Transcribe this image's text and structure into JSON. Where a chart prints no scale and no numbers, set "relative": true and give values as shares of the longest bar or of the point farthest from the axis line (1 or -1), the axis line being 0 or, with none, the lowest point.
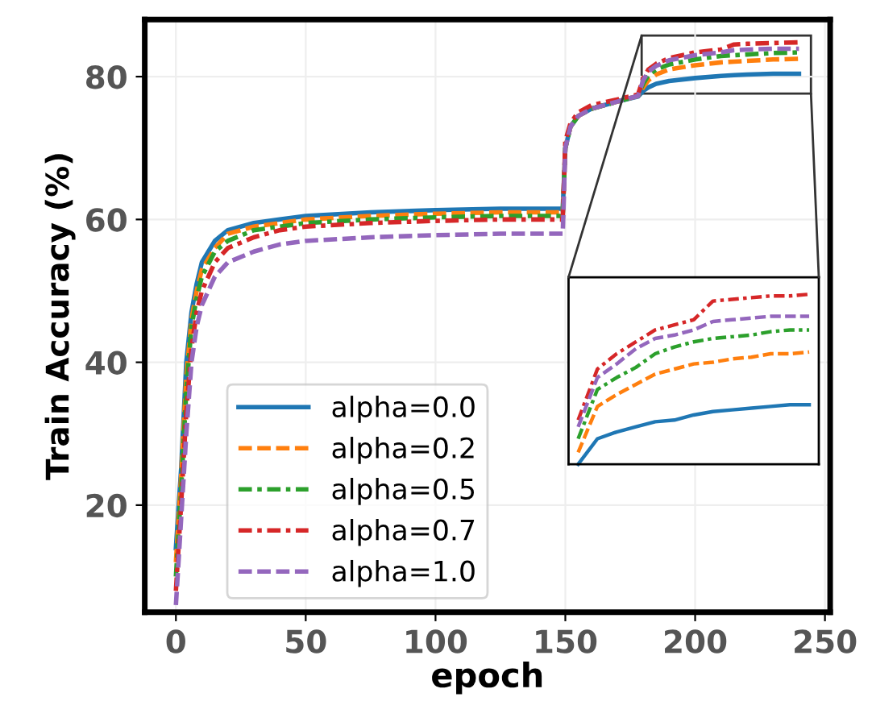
{
  "chart_data": [
    {
      "type": "line",
      "xlabel": "epoch",
      "ylabel": "Train Accuracy (%)",
      "xlim": [
        -12,
        252
      ],
      "ylim": [
        5,
        88
      ],
      "xticks": [
        0,
        50,
        100,
        150,
        200,
        250
      ],
      "yticks": [
        20,
        40,
        60,
        80
      ],
      "grid": true,
      "legend": "bottom left",
      "x": [
        0,
        2,
        4,
        6,
        8,
        10,
        15,
        20,
        30,
        40,
        50,
        75,
        100,
        125,
        149,
        150,
        152,
        155,
        160,
        170,
        178,
        180,
        182,
        185,
        190,
        200,
        210,
        215,
        220,
        230,
        240
      ],
      "series": [
        {
          "name": "alpha=0.0",
          "color": "#1f77b4",
          "line_style": "solid",
          "values": [
            14,
            25,
            40,
            47,
            51,
            54,
            57,
            58.5,
            59.5,
            60,
            60.5,
            61,
            61.3,
            61.5,
            61.5,
            70,
            73,
            74.5,
            75.5,
            76.5,
            77.2,
            78,
            78.5,
            79,
            79.4,
            79.8,
            80.1,
            80.2,
            80.3,
            80.4,
            80.4
          ]
        },
        {
          "name": "alpha=0.2",
          "color": "#ff7f0e",
          "line_style": "dashed",
          "values": [
            12,
            24,
            38,
            46,
            50,
            53,
            56,
            58,
            59,
            59.5,
            60,
            60.5,
            60.8,
            61,
            61,
            70,
            73,
            74.5,
            75.5,
            76.5,
            77.3,
            78.5,
            79.5,
            80.3,
            81,
            81.6,
            82,
            82.1,
            82.2,
            82.4,
            82.5
          ]
        },
        {
          "name": "alpha=0.5",
          "color": "#2ca02c",
          "line_style": "dashdot",
          "values": [
            10,
            22,
            36,
            45,
            49,
            52,
            55.5,
            57,
            58.5,
            59,
            59.5,
            60,
            60.3,
            60.5,
            60.5,
            70,
            73,
            74.5,
            75.5,
            76.5,
            77.3,
            79,
            80.2,
            81,
            81.7,
            82.4,
            82.9,
            83,
            83.1,
            83.3,
            83.4
          ]
        },
        {
          "name": "alpha=0.7",
          "color": "#d62728",
          "line_style": "dashdot",
          "values": [
            8,
            20,
            33,
            42,
            47,
            50,
            54,
            56,
            57.5,
            58.5,
            59,
            59.5,
            59.8,
            60,
            60,
            71,
            73.5,
            75,
            76,
            76.8,
            77.5,
            79.8,
            81,
            81.8,
            82.6,
            83.4,
            83.8,
            84.5,
            84.6,
            84.7,
            84.8
          ]
        },
        {
          "name": "alpha=1.0",
          "color": "#9467bd",
          "line_style": "dashed",
          "values": [
            6,
            18,
            30,
            40,
            45,
            48,
            52,
            54,
            55.5,
            56.5,
            57,
            57.5,
            57.8,
            58,
            58,
            70,
            73,
            74.5,
            75.5,
            76.5,
            77.3,
            79.5,
            80.7,
            81.5,
            82.3,
            83,
            83.4,
            83.7,
            83.8,
            83.9,
            83.9
          ]
        }
      ]
    },
    {
      "type": "line",
      "relative": true,
      "categories": [
        null,
        null,
        null,
        null,
        null,
        null,
        null,
        null,
        null,
        null,
        null,
        null,
        null
      ],
      "series": [
        {
          "color": "#1f77b4",
          "line_style": "solid",
          "values": [
            0,
            0.15,
            0.19,
            0.22,
            0.25,
            0.26,
            0.29,
            0.31,
            0.32,
            0.33,
            0.34,
            0.35,
            0.35
          ]
        },
        {
          "color": "#ff7f0e",
          "line_style": "dashed",
          "values": [
            0.07,
            0.34,
            0.41,
            0.47,
            0.53,
            0.56,
            0.59,
            0.6,
            0.62,
            0.63,
            0.65,
            0.65,
            0.66
          ]
        },
        {
          "color": "#2ca02c",
          "line_style": "dashdot",
          "values": [
            0.15,
            0.44,
            0.51,
            0.57,
            0.65,
            0.69,
            0.72,
            0.74,
            0.75,
            0.76,
            0.78,
            0.79,
            0.79
          ]
        },
        {
          "color": "#d62728",
          "line_style": "dashdot",
          "values": [
            0.26,
            0.56,
            0.65,
            0.72,
            0.79,
            0.82,
            0.85,
            0.96,
            0.97,
            0.98,
            0.99,
            0.99,
            1
          ]
        },
        {
          "color": "#9467bd",
          "line_style": "dashed",
          "values": [
            0.22,
            0.51,
            0.59,
            0.68,
            0.74,
            0.76,
            0.79,
            0.84,
            0.85,
            0.86,
            0.87,
            0.87,
            0.87
          ]
        }
      ]
    }
  ]
}
